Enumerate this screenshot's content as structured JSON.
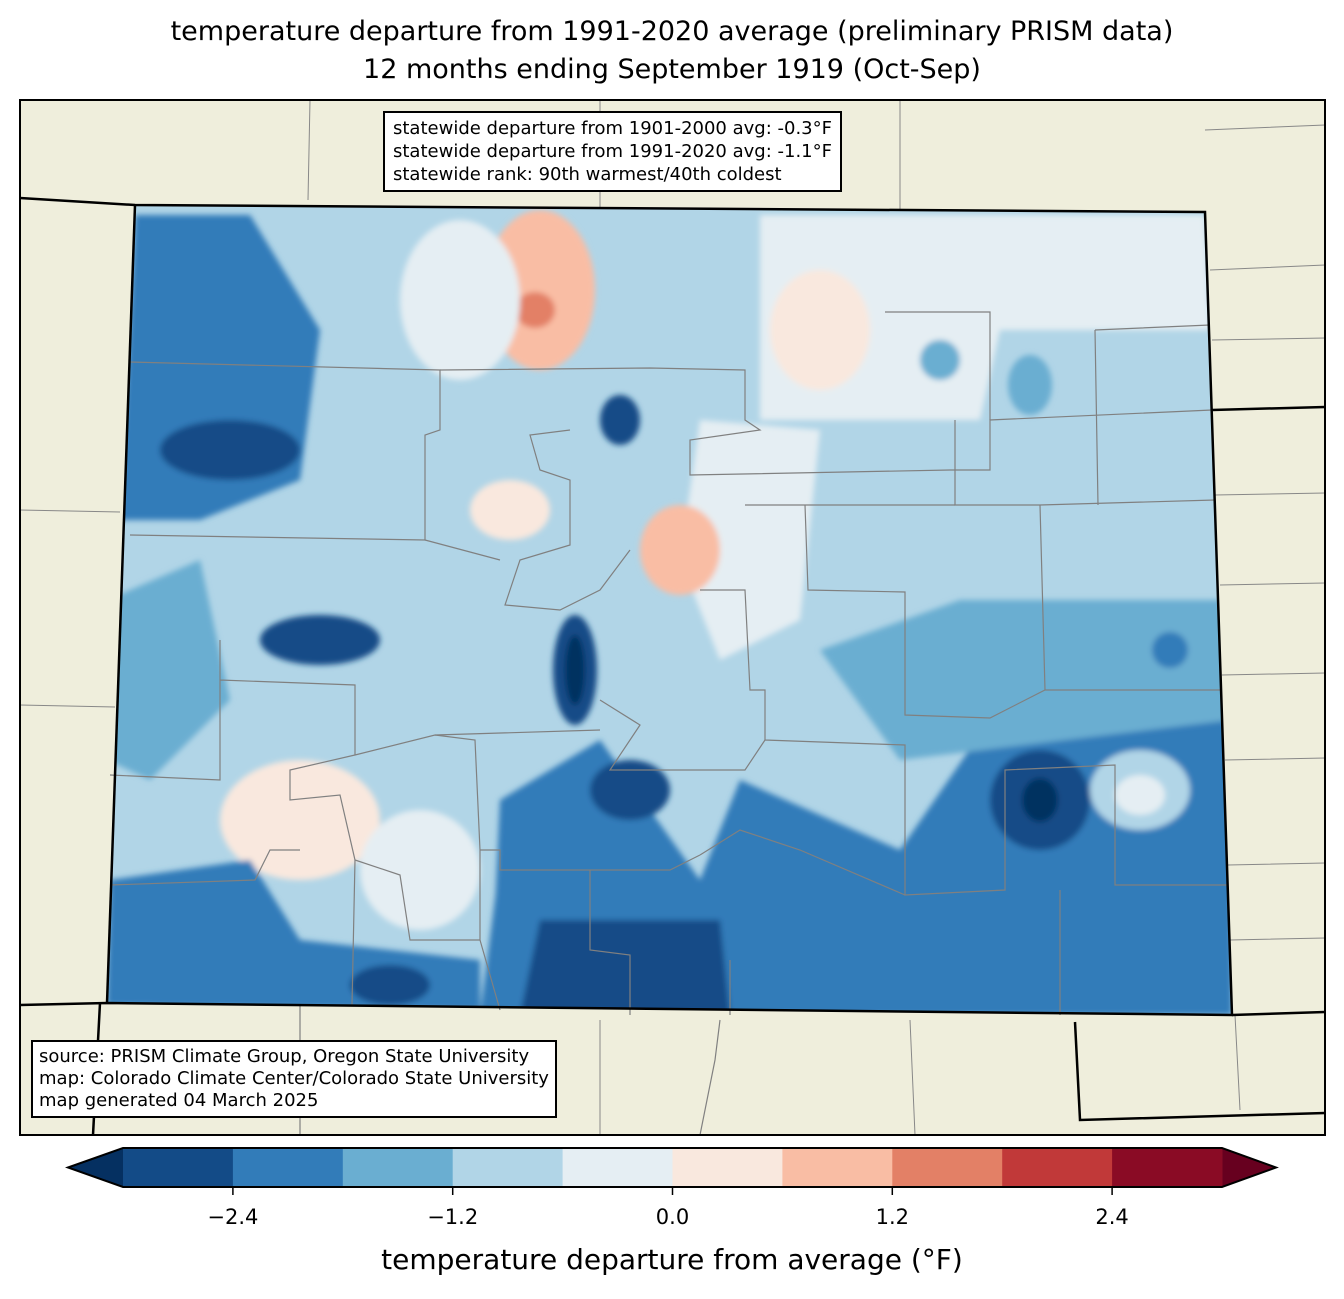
{
  "title": {
    "line1": "temperature departure from 1991-2020 average (preliminary PRISM data)",
    "line2": "12 months ending September 1919 (Oct-Sep)"
  },
  "stats_box": {
    "line1": "statewide departure from 1901-2000 avg: -0.3°F",
    "line2": "statewide departure from 1991-2020 avg: -1.1°F",
    "line3": "statewide rank: 90th warmest/40th coldest"
  },
  "source_box": {
    "line1": "source: PRISM Climate Group, Oregon State University",
    "line2": "map: Colorado Climate Center/Colorado State University",
    "line3": "map generated 04 March 2025"
  },
  "colors": {
    "background_land": "#efeedc",
    "under": "#053061",
    "over": "#67001f",
    "bins": [
      "#134b87",
      "#327cb9",
      "#6aaed1",
      "#b1d5e7",
      "#e5eef3",
      "#f9e8de",
      "#f9bda4",
      "#e38066",
      "#c13939",
      "#8a0b25"
    ]
  },
  "chart_data": {
    "type": "heatmap",
    "region": "Colorado",
    "colorbar": {
      "label": "temperature departure from average (°F)",
      "boundaries": [
        -3.0,
        -2.4,
        -1.8,
        -1.2,
        -0.6,
        0.0,
        0.6,
        1.2,
        1.8,
        2.4,
        3.0
      ],
      "extend": "both",
      "ticks": [
        -2.4,
        -1.2,
        0.0,
        1.2,
        2.4
      ],
      "tick_labels": [
        "−2.4",
        "−1.2",
        "0.0",
        "1.2",
        "2.4"
      ]
    },
    "statewide_departure_1901_2000": -0.3,
    "statewide_departure_1991_2020": -1.1
  }
}
